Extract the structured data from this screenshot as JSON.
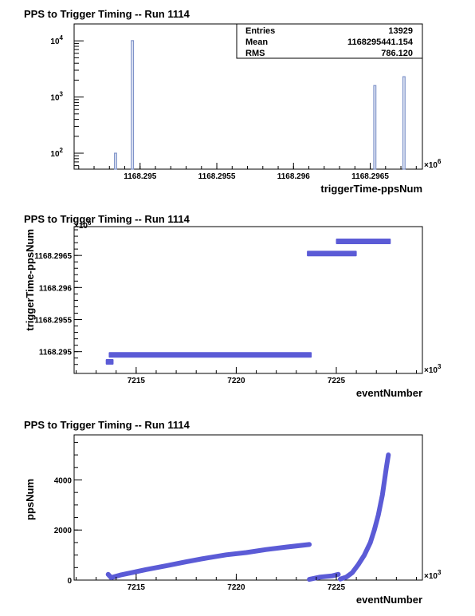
{
  "chart_data": [
    {
      "type": "bar",
      "title": "PPS to Trigger Timing -- Run 1114",
      "xlabel": "triggerTime-ppsNum",
      "ylabel": "",
      "x_multiplier_label": "×10",
      "x_multiplier_exp": "6",
      "log_y": true,
      "xlim": [
        1168.29457,
        1168.29684
      ],
      "ylim": [
        52,
        20000
      ],
      "grid": false,
      "x_tick_values": [
        1168.295,
        1168.2955,
        1168.296,
        1168.2965
      ],
      "x_tick_labels": [
        "1168.295",
        "1168.2955",
        "1168.296",
        "1168.2965"
      ],
      "y_tick_values": [
        100,
        1000,
        10000
      ],
      "y_tick_bases": [
        "10",
        "10",
        "10"
      ],
      "y_tick_exps": [
        "2",
        "3",
        "4"
      ],
      "bar_width": 1.4e-05,
      "bars": [
        {
          "x": 1168.29484,
          "value": 100
        },
        {
          "x": 1168.29495,
          "value": 10100
        },
        {
          "x": 1168.29653,
          "value": 1600
        },
        {
          "x": 1168.29672,
          "value": 2300
        }
      ],
      "stats": {
        "entries_label": "Entries",
        "entries_value": "13929",
        "mean_label": "Mean",
        "mean_value": "1168295441.154",
        "rms_label": "RMS",
        "rms_value": "786.120"
      },
      "legend_position": "top-right",
      "color": "#7f93c9"
    },
    {
      "type": "scatter",
      "title": "PPS to Trigger Timing -- Run 1114",
      "xlabel": "eventNumber",
      "ylabel": "triggerTime-ppsNum",
      "x_multiplier_label": "×10",
      "x_multiplier_exp": "3",
      "y_multiplier_label": "×10",
      "y_multiplier_exp": "6",
      "xlim": [
        7211.9,
        7229.3
      ],
      "ylim": [
        1168.29466,
        1168.29695
      ],
      "grid": false,
      "x_tick_values": [
        7215,
        7220,
        7225
      ],
      "x_tick_labels": [
        "7215",
        "7220",
        "7225"
      ],
      "y_tick_values": [
        1168.295,
        1168.2955,
        1168.296,
        1168.2965
      ],
      "y_tick_labels": [
        "1168.295",
        "1168.2955",
        "1168.296",
        "1168.2965"
      ],
      "segments": [
        {
          "x_start": 7213.6,
          "x_end": 7213.75,
          "y": 1168.29484
        },
        {
          "x_start": 7213.75,
          "x_end": 7223.65,
          "y": 1168.29495
        },
        {
          "x_start": 7223.65,
          "x_end": 7225.9,
          "y": 1168.29653
        },
        {
          "x_start": 7225.1,
          "x_end": 7227.6,
          "y": 1168.29672
        }
      ],
      "color": "#5b5bd6"
    },
    {
      "type": "scatter",
      "title": "PPS to Trigger Timing -- Run 1114",
      "xlabel": "eventNumber",
      "ylabel": "ppsNum",
      "x_multiplier_label": "×10",
      "x_multiplier_exp": "3",
      "xlim": [
        7211.9,
        7229.3
      ],
      "ylim": [
        0,
        5800
      ],
      "grid": false,
      "x_tick_values": [
        7215,
        7220,
        7225
      ],
      "x_tick_labels": [
        "7215",
        "7220",
        "7225"
      ],
      "y_tick_values": [
        0,
        2000,
        4000
      ],
      "y_tick_labels": [
        "0",
        "2000",
        "4000"
      ],
      "series": [
        {
          "x": [
            7213.6,
            7213.75,
            7214.2,
            7214.8,
            7215.5,
            7216.5,
            7217.5,
            7218.5,
            7219.5,
            7220.5,
            7221.5,
            7222.5,
            7223.65
          ],
          "y": [
            230,
            100,
            200,
            300,
            420,
            570,
            730,
            880,
            1010,
            1100,
            1220,
            1320,
            1420
          ]
        },
        {
          "x": [
            7223.65,
            7224.2,
            7224.8,
            7225.1
          ],
          "y": [
            30,
            120,
            170,
            230
          ]
        },
        {
          "x": [
            7225.2,
            7225.5,
            7225.8,
            7226.1,
            7226.4,
            7226.7,
            7226.9,
            7227.1,
            7227.3,
            7227.5,
            7227.6
          ],
          "y": [
            40,
            120,
            300,
            620,
            1000,
            1500,
            2000,
            2600,
            3400,
            4500,
            5000
          ]
        }
      ],
      "color": "#5b5bd6"
    }
  ]
}
